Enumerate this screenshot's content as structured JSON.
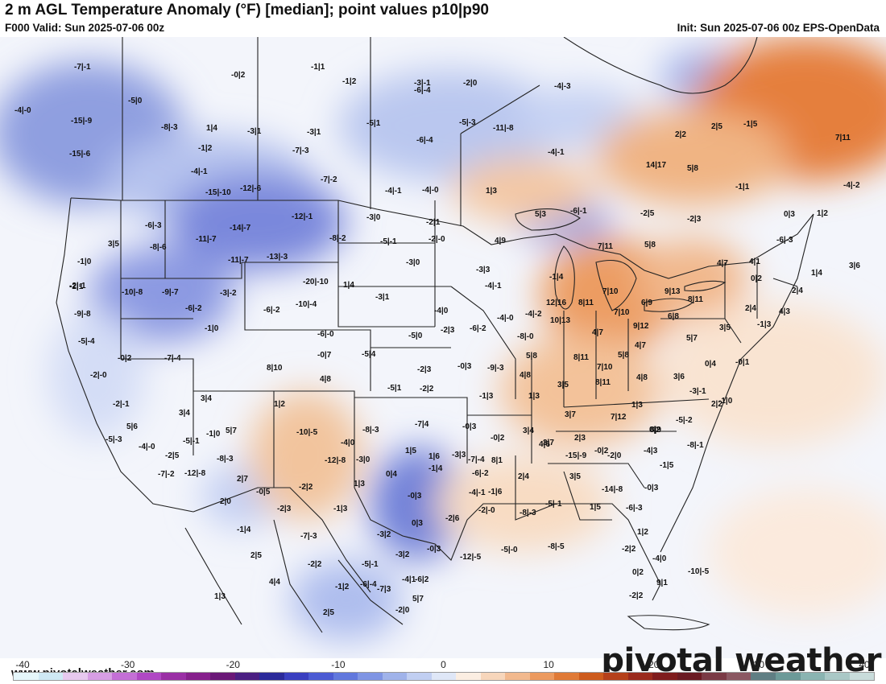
{
  "header": {
    "title": "2 m AGL Temperature Anomaly (°F) [median]; point values p10|p90",
    "valid": "F000 Valid: Sun 2025-07-06 00z",
    "init": "Init: Sun 2025-07-06 00z EPS-OpenData"
  },
  "footer": {
    "site": "www.pivotalweather.com",
    "brand": "pivotal weather"
  },
  "colorbar": {
    "ticks": [
      "-40",
      "-30",
      "-20",
      "-10",
      "0",
      "10",
      "20",
      "30",
      "40"
    ],
    "colors": [
      "#e6f7fb",
      "#cfe9f5",
      "#e7c9ef",
      "#d79ee4",
      "#c46fd6",
      "#b048c4",
      "#9a2fa5",
      "#86208c",
      "#6a1877",
      "#4b1f82",
      "#2b2a9a",
      "#3a3fc0",
      "#4c5bd3",
      "#6178dd",
      "#7f95e4",
      "#a0b3ea",
      "#c1cff2",
      "#dfe7f7",
      "#fbeee2",
      "#f7d6bb",
      "#f2b98e",
      "#ec9a5f",
      "#e07a37",
      "#cd5b1d",
      "#b5401a",
      "#9a2a1c",
      "#7f1c1d",
      "#6a1a22",
      "#7a3a45",
      "#8b5862",
      "#5f7e83",
      "#6c9a98",
      "#8ab4b1",
      "#aac8c6",
      "#c9dcdb"
    ]
  },
  "point_values": [
    {
      "text": "-7|-1"
    },
    {
      "text": "-0|2"
    },
    {
      "text": "-1|1"
    },
    {
      "text": "-1|2"
    },
    {
      "text": "-3|-1"
    },
    {
      "text": "-4|-0"
    },
    {
      "text": "-5|0"
    },
    {
      "text": "-6|-4"
    },
    {
      "text": "-2|0"
    },
    {
      "text": "-4|-3"
    },
    {
      "text": "-15|-9"
    },
    {
      "text": "-8|-3"
    },
    {
      "text": "1|4"
    },
    {
      "text": "-3|1"
    },
    {
      "text": "-3|1"
    },
    {
      "text": "-5|1"
    },
    {
      "text": "-5|-3"
    },
    {
      "text": "-11|-8"
    },
    {
      "text": "-1|5"
    },
    {
      "text": "2|5"
    },
    {
      "text": "-15|-6"
    },
    {
      "text": "-1|2"
    },
    {
      "text": "-7|-3"
    },
    {
      "text": "-6|-4"
    },
    {
      "text": "-4|-1"
    },
    {
      "text": "2|2"
    },
    {
      "text": "7|11"
    },
    {
      "text": "-4|-1"
    },
    {
      "text": "14|17"
    },
    {
      "text": "5|8"
    },
    {
      "text": "-15|-10"
    },
    {
      "text": "-12|-6"
    },
    {
      "text": "-7|-2"
    },
    {
      "text": "-4|-1"
    },
    {
      "text": "-4|-0"
    },
    {
      "text": "1|3"
    },
    {
      "text": "-1|1"
    },
    {
      "text": "-4|-2"
    },
    {
      "text": "-6|-3"
    },
    {
      "text": "-12|-1"
    },
    {
      "text": "-3|0"
    },
    {
      "text": "-2|1"
    },
    {
      "text": "-14|-7"
    },
    {
      "text": "-8|-2"
    },
    {
      "text": "-5|-1"
    },
    {
      "text": "-2|-0"
    },
    {
      "text": "5|3"
    },
    {
      "text": "-6|-1"
    },
    {
      "text": "-2|5"
    },
    {
      "text": "-2|3"
    },
    {
      "text": "0|3"
    },
    {
      "text": "1|2"
    },
    {
      "text": "3|5"
    },
    {
      "text": "-8|-6"
    },
    {
      "text": "-11|-7"
    },
    {
      "text": "-13|-3"
    },
    {
      "text": "-3|0"
    },
    {
      "text": "-3|3"
    },
    {
      "text": "4|9"
    },
    {
      "text": "7|11"
    },
    {
      "text": "5|8"
    },
    {
      "text": "-6|-3"
    },
    {
      "text": "-1|0"
    },
    {
      "text": "-11|-7"
    },
    {
      "text": "-20|-10"
    },
    {
      "text": "1|4"
    },
    {
      "text": "-2|1"
    },
    {
      "text": "-4|-1"
    },
    {
      "text": "-1|4"
    },
    {
      "text": "4|7"
    },
    {
      "text": "4|1"
    },
    {
      "text": "0|2"
    },
    {
      "text": "1|4"
    },
    {
      "text": "3|6"
    },
    {
      "text": "-2|-1"
    },
    {
      "text": "-10|-8"
    },
    {
      "text": "-9|-7"
    },
    {
      "text": "-3|-2"
    },
    {
      "text": "-6|-2"
    },
    {
      "text": "-10|-4"
    },
    {
      "text": "-3|1"
    },
    {
      "text": "-4|0"
    },
    {
      "text": "-4|-0"
    },
    {
      "text": "-4|-2"
    },
    {
      "text": "12|16"
    },
    {
      "text": "8|11"
    },
    {
      "text": "7|10"
    },
    {
      "text": "9|13"
    },
    {
      "text": "8|11"
    },
    {
      "text": "2|4"
    },
    {
      "text": "2|4"
    },
    {
      "text": "4|3"
    },
    {
      "text": "-9|-8"
    },
    {
      "text": "-6|-2"
    },
    {
      "text": "10|13"
    },
    {
      "text": "7|10"
    },
    {
      "text": "6|9"
    },
    {
      "text": "6|8"
    },
    {
      "text": "9|12"
    },
    {
      "text": "3|5"
    },
    {
      "text": "-1|3"
    },
    {
      "text": "-5|-4"
    },
    {
      "text": "-1|0"
    },
    {
      "text": "-6|-0"
    },
    {
      "text": "-5|0"
    },
    {
      "text": "-2|3"
    },
    {
      "text": "-6|-2"
    },
    {
      "text": "-8|-0"
    },
    {
      "text": "4|7"
    },
    {
      "text": "4|7"
    },
    {
      "text": "5|7"
    },
    {
      "text": "-0|2"
    },
    {
      "text": "-7|-4"
    },
    {
      "text": "-0|7"
    },
    {
      "text": "-5|4"
    },
    {
      "text": "5|8"
    },
    {
      "text": "8|11"
    },
    {
      "text": "5|8"
    },
    {
      "text": "0|4"
    },
    {
      "text": "-0|1"
    },
    {
      "text": "-2|-0"
    },
    {
      "text": "8|10"
    },
    {
      "text": "-2|3"
    },
    {
      "text": "-0|3"
    },
    {
      "text": "-9|-3"
    },
    {
      "text": "4|8"
    },
    {
      "text": "7|10"
    },
    {
      "text": "4|8"
    },
    {
      "text": "3|6"
    },
    {
      "text": "4|8"
    },
    {
      "text": "-5|1"
    },
    {
      "text": "-2|2"
    },
    {
      "text": "3|5"
    },
    {
      "text": "8|11"
    },
    {
      "text": "-3|-1"
    },
    {
      "text": "-2|-1"
    },
    {
      "text": "3|4"
    },
    {
      "text": "1|2"
    },
    {
      "text": "-1|3"
    },
    {
      "text": "1|3"
    },
    {
      "text": "1|3"
    },
    {
      "text": "2|2"
    },
    {
      "text": "-1|0"
    },
    {
      "text": "5|6"
    },
    {
      "text": "3|4"
    },
    {
      "text": "-1|0"
    },
    {
      "text": "5|7"
    },
    {
      "text": "-10|-5"
    },
    {
      "text": "-7|4"
    },
    {
      "text": "-0|3"
    },
    {
      "text": "3|4"
    },
    {
      "text": "3|7"
    },
    {
      "text": "7|12"
    },
    {
      "text": "-5|-2"
    },
    {
      "text": "-5|-3"
    },
    {
      "text": "-5|-1"
    },
    {
      "text": "-8|-3"
    },
    {
      "text": "-4|0"
    },
    {
      "text": "-0|2"
    },
    {
      "text": "2|3"
    },
    {
      "text": "0|2"
    },
    {
      "text": "8|9"
    },
    {
      "text": "-4|-0"
    },
    {
      "text": "-2|5"
    },
    {
      "text": "-8|-3"
    },
    {
      "text": "-12|-8"
    },
    {
      "text": "-3|0"
    },
    {
      "text": "1|5"
    },
    {
      "text": "1|6"
    },
    {
      "text": "-3|3"
    },
    {
      "text": "-7|-4"
    },
    {
      "text": "4|6"
    },
    {
      "text": "-0|2"
    },
    {
      "text": "-4|3"
    },
    {
      "text": "-8|-1"
    },
    {
      "text": "-7|-2"
    },
    {
      "text": "-12|-8"
    },
    {
      "text": "2|7"
    },
    {
      "text": "1|3"
    },
    {
      "text": "0|4"
    },
    {
      "text": "-1|4"
    },
    {
      "text": "-6|-2"
    },
    {
      "text": "8|1"
    },
    {
      "text": "3|7"
    },
    {
      "text": "-15|-9"
    },
    {
      "text": "-2|0"
    },
    {
      "text": "-1|5"
    },
    {
      "text": "-0|5"
    },
    {
      "text": "-2|2"
    },
    {
      "text": "-0|3"
    },
    {
      "text": "-4|-1"
    },
    {
      "text": "-1|6"
    },
    {
      "text": "2|4"
    },
    {
      "text": "3|5"
    },
    {
      "text": "-14|-8"
    },
    {
      "text": "-0|3"
    },
    {
      "text": "2|0"
    },
    {
      "text": "-2|3"
    },
    {
      "text": "-1|3"
    },
    {
      "text": "0|3"
    },
    {
      "text": "-2|6"
    },
    {
      "text": "-2|-0"
    },
    {
      "text": "-8|-3"
    },
    {
      "text": "-5|-1"
    },
    {
      "text": "1|5"
    },
    {
      "text": "-6|-3"
    },
    {
      "text": "-1|4"
    },
    {
      "text": "-7|-3"
    },
    {
      "text": "-3|2"
    },
    {
      "text": "1|2"
    },
    {
      "text": "2|5"
    },
    {
      "text": "-2|2"
    },
    {
      "text": "-5|-1"
    },
    {
      "text": "-3|2"
    },
    {
      "text": "-0|3"
    },
    {
      "text": "-12|-5"
    },
    {
      "text": "-5|-0"
    },
    {
      "text": "-8|-5"
    },
    {
      "text": "-2|2"
    },
    {
      "text": "-4|0"
    },
    {
      "text": "4|4"
    },
    {
      "text": "-6|-4"
    },
    {
      "text": "-6|2"
    },
    {
      "text": "0|2"
    },
    {
      "text": "9|1"
    },
    {
      "text": "-10|-5"
    },
    {
      "text": "-1|2"
    },
    {
      "text": "-7|3"
    },
    {
      "text": "-4|1"
    },
    {
      "text": "-2|0"
    },
    {
      "text": "1|3"
    },
    {
      "text": "2|5"
    },
    {
      "text": "5|7"
    },
    {
      "text": "-2|2"
    }
  ]
}
